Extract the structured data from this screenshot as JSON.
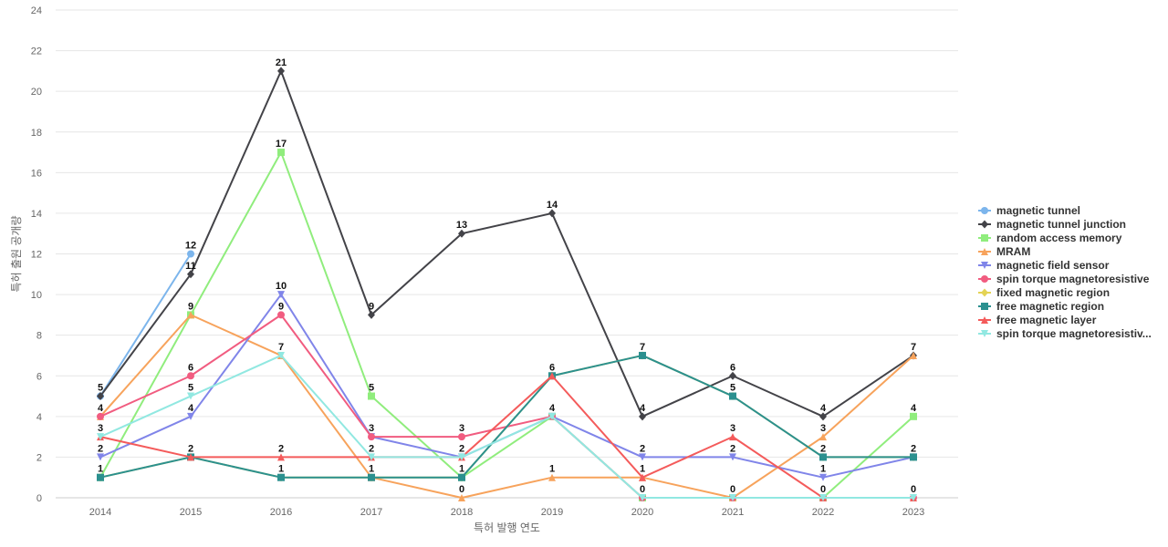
{
  "chart_data": {
    "type": "line",
    "title": "",
    "xlabel": "특허 발행 연도",
    "ylabel": "특허 출원 공개량",
    "x": [
      "2014",
      "2015",
      "2016",
      "2017",
      "2018",
      "2019",
      "2020",
      "2021",
      "2022",
      "2023"
    ],
    "ylim": [
      0,
      24
    ],
    "yticks": [
      0,
      2,
      4,
      6,
      8,
      10,
      12,
      14,
      16,
      18,
      20,
      22,
      24
    ],
    "grid": true,
    "legend_position": "right",
    "series": [
      {
        "name": "magnetic tunnel",
        "color": "#7cb5ec",
        "marker": "circle",
        "values": [
          5,
          12,
          null,
          null,
          null,
          null,
          null,
          null,
          null,
          null
        ]
      },
      {
        "name": "magnetic tunnel junction",
        "color": "#434348",
        "marker": "diamond",
        "values": [
          5,
          11,
          21,
          9,
          13,
          14,
          4,
          6,
          4,
          7
        ]
      },
      {
        "name": "random access memory",
        "color": "#90ed7d",
        "marker": "square",
        "values": [
          1,
          9,
          17,
          5,
          1,
          4,
          0,
          0,
          0,
          4
        ]
      },
      {
        "name": "MRAM",
        "color": "#f7a35c",
        "marker": "triangle",
        "values": [
          4,
          9,
          7,
          1,
          0,
          1,
          1,
          0,
          3,
          7
        ]
      },
      {
        "name": "magnetic field sensor",
        "color": "#8085e9",
        "marker": "triangle-down",
        "values": [
          2,
          4,
          10,
          3,
          2,
          4,
          2,
          2,
          1,
          2
        ]
      },
      {
        "name": "spin torque magnetoresistive",
        "color": "#f15c80",
        "marker": "circle",
        "values": [
          4,
          6,
          9,
          3,
          3,
          4,
          0,
          0,
          0,
          0
        ]
      },
      {
        "name": "fixed magnetic region",
        "color": "#e4d354",
        "marker": "diamond",
        "values": [
          1,
          2,
          1,
          1,
          1,
          6,
          7,
          5,
          2,
          2
        ]
      },
      {
        "name": "free magnetic region",
        "color": "#2b908f",
        "marker": "square",
        "values": [
          1,
          2,
          1,
          1,
          1,
          6,
          7,
          5,
          2,
          2
        ]
      },
      {
        "name": "free magnetic layer",
        "color": "#f45b5b",
        "marker": "triangle",
        "values": [
          3,
          2,
          2,
          2,
          2,
          6,
          1,
          3,
          0,
          0
        ]
      },
      {
        "name": "spin torque magnetoresistiv...",
        "color": "#91e8e1",
        "marker": "triangle-down",
        "values": [
          3,
          5,
          7,
          2,
          2,
          4,
          0,
          0,
          0,
          0
        ]
      }
    ],
    "data_labels": [
      {
        "x": "2014",
        "value": 5
      },
      {
        "x": "2014",
        "value": 4
      },
      {
        "x": "2014",
        "value": 3
      },
      {
        "x": "2014",
        "value": 2
      },
      {
        "x": "2014",
        "value": 1
      },
      {
        "x": "2015",
        "value": 12
      },
      {
        "x": "2015",
        "value": 11
      },
      {
        "x": "2015",
        "value": 9
      },
      {
        "x": "2015",
        "value": 6
      },
      {
        "x": "2015",
        "value": 5
      },
      {
        "x": "2015",
        "value": 4
      },
      {
        "x": "2015",
        "value": 2
      },
      {
        "x": "2016",
        "value": 21
      },
      {
        "x": "2016",
        "value": 17
      },
      {
        "x": "2016",
        "value": 10
      },
      {
        "x": "2016",
        "value": 9
      },
      {
        "x": "2016",
        "value": 7
      },
      {
        "x": "2016",
        "value": 2
      },
      {
        "x": "2016",
        "value": 1
      },
      {
        "x": "2017",
        "value": 9
      },
      {
        "x": "2017",
        "value": 5
      },
      {
        "x": "2017",
        "value": 3
      },
      {
        "x": "2017",
        "value": 2
      },
      {
        "x": "2017",
        "value": 1
      },
      {
        "x": "2018",
        "value": 13
      },
      {
        "x": "2018",
        "value": 3
      },
      {
        "x": "2018",
        "value": 2
      },
      {
        "x": "2018",
        "value": 1
      },
      {
        "x": "2018",
        "value": 0
      },
      {
        "x": "2019",
        "value": 14
      },
      {
        "x": "2019",
        "value": 6
      },
      {
        "x": "2019",
        "value": 4
      },
      {
        "x": "2019",
        "value": 1
      },
      {
        "x": "2020",
        "value": 7
      },
      {
        "x": "2020",
        "value": 4
      },
      {
        "x": "2020",
        "value": 2
      },
      {
        "x": "2020",
        "value": 1
      },
      {
        "x": "2020",
        "value": 0
      },
      {
        "x": "2021",
        "value": 6
      },
      {
        "x": "2021",
        "value": 5
      },
      {
        "x": "2021",
        "value": 3
      },
      {
        "x": "2021",
        "value": 2
      },
      {
        "x": "2021",
        "value": 0
      },
      {
        "x": "2022",
        "value": 4
      },
      {
        "x": "2022",
        "value": 3
      },
      {
        "x": "2022",
        "value": 2
      },
      {
        "x": "2022",
        "value": 1
      },
      {
        "x": "2022",
        "value": 0
      },
      {
        "x": "2023",
        "value": 7
      },
      {
        "x": "2023",
        "value": 4
      },
      {
        "x": "2023",
        "value": 2
      },
      {
        "x": "2023",
        "value": 0
      }
    ]
  }
}
